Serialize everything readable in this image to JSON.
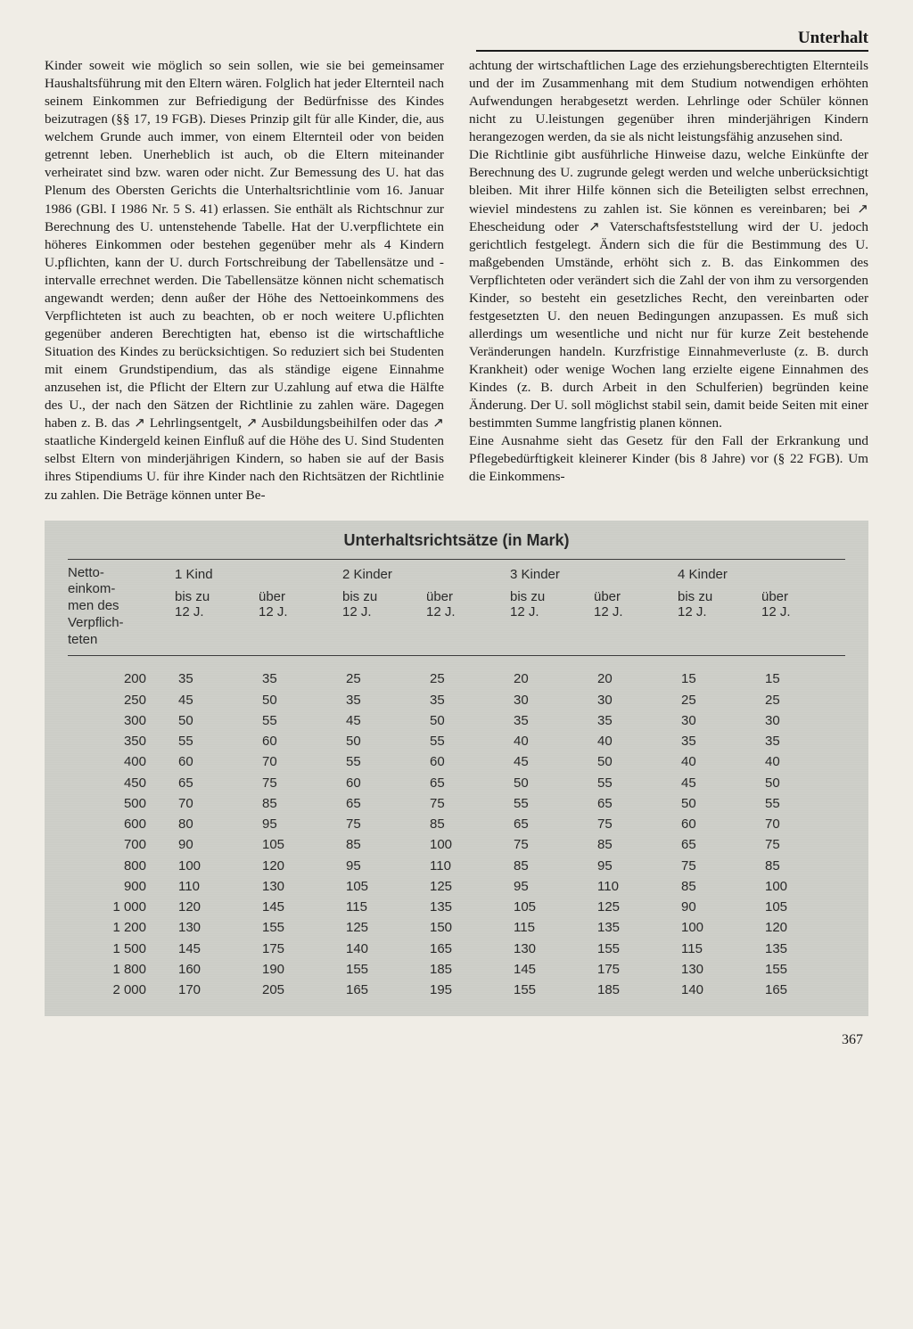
{
  "header": {
    "title": "Unterhalt"
  },
  "body": {
    "col1": "Kinder soweit wie möglich so sein sollen, wie sie bei gemeinsamer Haushaltsführung mit den Eltern wären. Folglich hat jeder Elternteil nach seinem Einkommen zur Befriedigung der Bedürfnisse des Kindes beizutragen (§§ 17, 19 FGB). Dieses Prinzip gilt für alle Kinder, die, aus welchem Grunde auch immer, von einem Elternteil oder von beiden getrennt leben. Unerheblich ist auch, ob die Eltern miteinander verheiratet sind bzw. waren oder nicht. Zur Bemessung des U. hat das Plenum des Obersten Gerichts die Unterhaltsrichtlinie vom 16. Januar 1986 (GBl. I 1986 Nr. 5 S. 41) erlassen. Sie enthält als Richtschnur zur Berechnung des U. untenstehende Tabelle. Hat der U.verpflichtete ein höheres Einkommen oder bestehen gegenüber mehr als 4 Kindern U.pflichten, kann der U. durch Fortschreibung der Tabellensätze und -intervalle errechnet werden. Die Tabellensätze können nicht schematisch angewandt werden; denn außer der Höhe des Nettoeinkommens des Verpflichteten ist auch zu beachten, ob er noch weitere U.pflichten gegenüber anderen Berechtigten hat, ebenso ist die wirtschaftliche Situation des Kindes zu berücksichtigen. So reduziert sich bei Studenten mit einem Grundstipendium, das als ständige eigene Einnahme anzusehen ist, die Pflicht der Eltern zur U.zahlung auf etwa die Hälfte des U., der nach den Sätzen der Richtlinie zu zahlen wäre. Dagegen haben z. B. das ↗ Lehrlingsentgelt, ↗ Ausbildungsbeihilfen oder das ↗ staatliche Kindergeld keinen Einfluß auf die Höhe des U. Sind Studenten selbst Eltern von minderjährigen Kindern, so haben sie auf der Basis ihres Stipendiums U. für ihre Kinder nach den Richtsätzen der Richtlinie zu zahlen. Die Beträge können unter Be-",
    "col2": "achtung der wirtschaftlichen Lage des erziehungsberechtigten Elternteils und der im Zusammenhang mit dem Studium notwendigen erhöhten Aufwendungen herabgesetzt werden. Lehrlinge oder Schüler können nicht zu U.leistungen gegenüber ihren minderjährigen Kindern herangezogen werden, da sie als nicht leistungsfähig anzusehen sind.\nDie Richtlinie gibt ausführliche Hinweise dazu, welche Einkünfte der Berechnung des U. zugrunde gelegt werden und welche unberücksichtigt bleiben. Mit ihrer Hilfe können sich die Beteiligten selbst errechnen, wieviel mindestens zu zahlen ist. Sie können es vereinbaren; bei ↗ Ehescheidung oder ↗ Vaterschaftsfeststellung wird der U. jedoch gerichtlich festgelegt. Ändern sich die für die Bestimmung des U. maßgebenden Umstände, erhöht sich z. B. das Einkommen des Verpflichteten oder verändert sich die Zahl der von ihm zu versorgenden Kinder, so besteht ein gesetzliches Recht, den vereinbarten oder festgesetzten U. den neuen Bedingungen anzupassen. Es muß sich allerdings um wesentliche und nicht nur für kurze Zeit bestehende Veränderungen handeln. Kurzfristige Einnahmeverluste (z. B. durch Krankheit) oder wenige Wochen lang erzielte eigene Einnahmen des Kindes (z. B. durch Arbeit in den Schulferien) begründen keine Änderung. Der U. soll möglichst stabil sein, damit beide Seiten mit einer bestimmten Summe langfristig planen können.\nEine Ausnahme sieht das Gesetz für den Fall der Erkrankung und Pflegebedürftigkeit kleinerer Kinder (bis 8 Jahre) vor (§ 22 FGB). Um die Einkommens-"
  },
  "table": {
    "title": "Unterhaltsrichtsätze (in Mark)",
    "left_header": "Netto-\neinkom-\nmen des\nVerpflich-\nteten",
    "groups": [
      "1 Kind",
      "2 Kinder",
      "3 Kinder",
      "4 Kinder"
    ],
    "sub_a": "bis zu\n12 J.",
    "sub_b": "über\n12 J.",
    "rows": [
      {
        "inc": "200",
        "v": [
          "35",
          "35",
          "25",
          "25",
          "20",
          "20",
          "15",
          "15"
        ]
      },
      {
        "inc": "250",
        "v": [
          "45",
          "50",
          "35",
          "35",
          "30",
          "30",
          "25",
          "25"
        ]
      },
      {
        "inc": "300",
        "v": [
          "50",
          "55",
          "45",
          "50",
          "35",
          "35",
          "30",
          "30"
        ]
      },
      {
        "inc": "350",
        "v": [
          "55",
          "60",
          "50",
          "55",
          "40",
          "40",
          "35",
          "35"
        ]
      },
      {
        "inc": "400",
        "v": [
          "60",
          "70",
          "55",
          "60",
          "45",
          "50",
          "40",
          "40"
        ]
      },
      {
        "inc": "450",
        "v": [
          "65",
          "75",
          "60",
          "65",
          "50",
          "55",
          "45",
          "50"
        ]
      },
      {
        "inc": "500",
        "v": [
          "70",
          "85",
          "65",
          "75",
          "55",
          "65",
          "50",
          "55"
        ]
      },
      {
        "inc": "600",
        "v": [
          "80",
          "95",
          "75",
          "85",
          "65",
          "75",
          "60",
          "70"
        ]
      },
      {
        "inc": "700",
        "v": [
          "90",
          "105",
          "85",
          "100",
          "75",
          "85",
          "65",
          "75"
        ]
      },
      {
        "inc": "800",
        "v": [
          "100",
          "120",
          "95",
          "110",
          "85",
          "95",
          "75",
          "85"
        ]
      },
      {
        "inc": "900",
        "v": [
          "110",
          "130",
          "105",
          "125",
          "95",
          "110",
          "85",
          "100"
        ]
      },
      {
        "inc": "1 000",
        "v": [
          "120",
          "145",
          "115",
          "135",
          "105",
          "125",
          "90",
          "105"
        ]
      },
      {
        "inc": "1 200",
        "v": [
          "130",
          "155",
          "125",
          "150",
          "115",
          "135",
          "100",
          "120"
        ]
      },
      {
        "inc": "1 500",
        "v": [
          "145",
          "175",
          "140",
          "165",
          "130",
          "155",
          "115",
          "135"
        ]
      },
      {
        "inc": "1 800",
        "v": [
          "160",
          "190",
          "155",
          "185",
          "145",
          "175",
          "130",
          "155"
        ]
      },
      {
        "inc": "2 000",
        "v": [
          "170",
          "205",
          "165",
          "195",
          "155",
          "185",
          "140",
          "165"
        ]
      }
    ],
    "colors": {
      "table_bg": "#cfd0ca",
      "text": "#2a2a2a",
      "rule": "#3a3a3a"
    }
  },
  "page_number": "367"
}
